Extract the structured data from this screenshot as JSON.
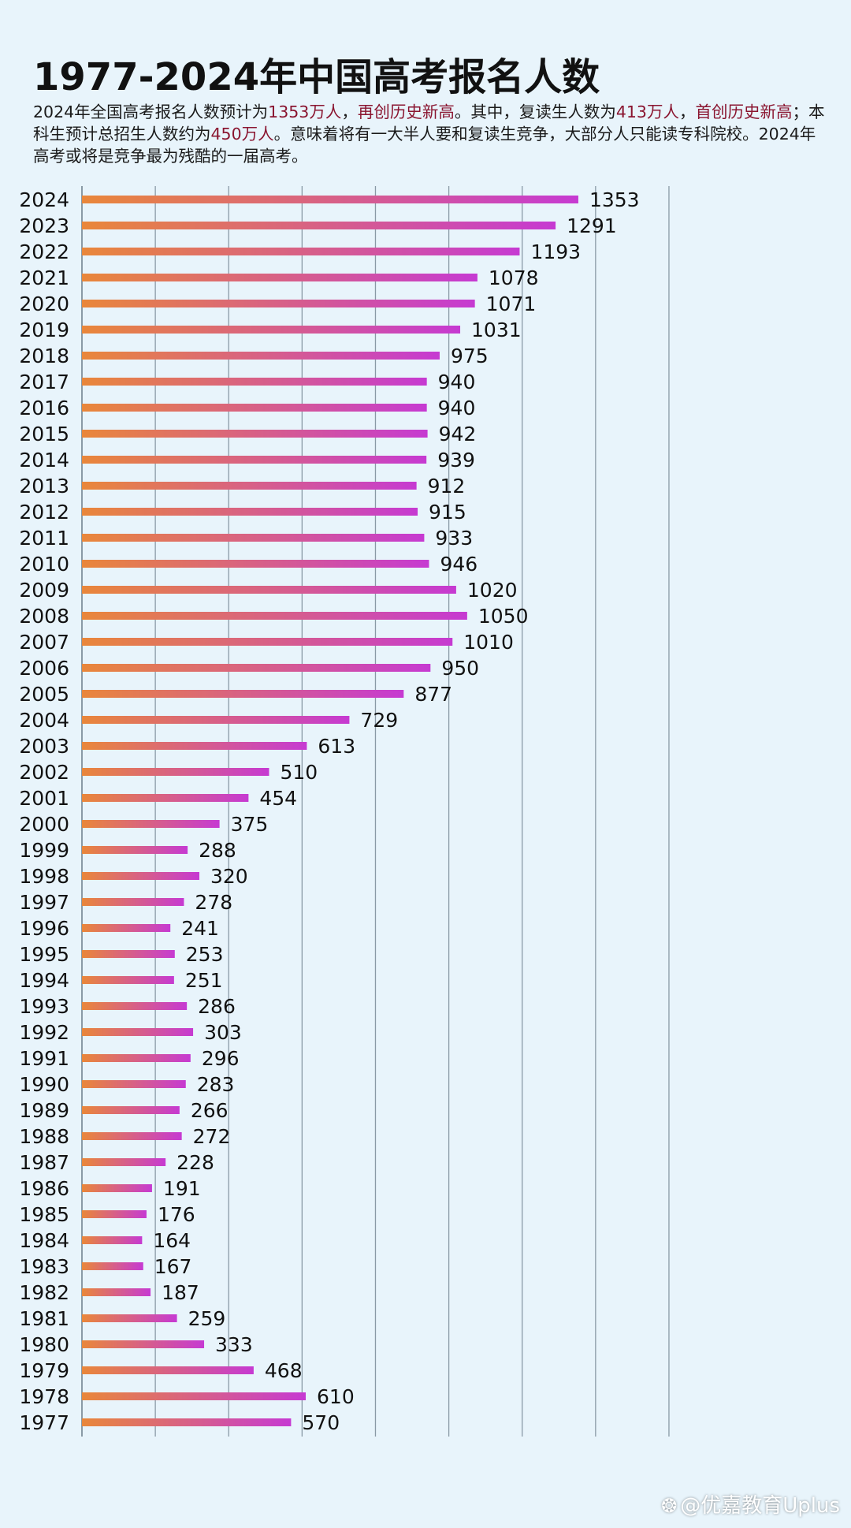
{
  "header": {
    "title": "1977-2024年中国高考报名人数",
    "desc_parts": [
      {
        "text": "2024年全国高考报名人数预计为",
        "hl": false
      },
      {
        "text": "1353万人",
        "hl": true
      },
      {
        "text": "，",
        "hl": false
      },
      {
        "text": "再创历史新高",
        "hl": true
      },
      {
        "text": "。其中，复读生人数为",
        "hl": false
      },
      {
        "text": "413万人",
        "hl": true
      },
      {
        "text": "，",
        "hl": false
      },
      {
        "text": "首创历史新高",
        "hl": true
      },
      {
        "text": "；本科生预计总招生人数约为",
        "hl": false
      },
      {
        "text": "450万人",
        "hl": true
      },
      {
        "text": "。意味着将有一大半人要和复读生竞争，大部分人只能读专科院校。2024年高考或将是竞争最为残酷的一届高考。",
        "hl": false
      }
    ]
  },
  "watermark": "@优嘉教育Uplus",
  "colors": {
    "background": "#e8f4fb",
    "bar_start": "#e9873a",
    "bar_end": "#c63ad2",
    "grid": "#8a9aa6",
    "highlight_text": "#8a1530"
  },
  "chart_data": {
    "type": "bar",
    "orientation": "horizontal",
    "title": "1977-2024年中国高考报名人数",
    "xlim": [
      0,
      1400
    ],
    "grid": true,
    "categories": [
      "2024",
      "2023",
      "2022",
      "2021",
      "2020",
      "2019",
      "2018",
      "2017",
      "2016",
      "2015",
      "2014",
      "2013",
      "2012",
      "2011",
      "2010",
      "2009",
      "2008",
      "2007",
      "2006",
      "2005",
      "2004",
      "2003",
      "2002",
      "2001",
      "2000",
      "1999",
      "1998",
      "1997",
      "1996",
      "1995",
      "1994",
      "1993",
      "1992",
      "1991",
      "1990",
      "1989",
      "1988",
      "1987",
      "1986",
      "1985",
      "1984",
      "1983",
      "1982",
      "1981",
      "1980",
      "1979",
      "1978",
      "1977"
    ],
    "values": [
      1353,
      1291,
      1193,
      1078,
      1071,
      1031,
      975,
      940,
      940,
      942,
      939,
      912,
      915,
      933,
      946,
      1020,
      1050,
      1010,
      950,
      877,
      729,
      613,
      510,
      454,
      375,
      288,
      320,
      278,
      241,
      253,
      251,
      286,
      303,
      296,
      283,
      266,
      272,
      228,
      191,
      176,
      164,
      167,
      187,
      259,
      333,
      468,
      610,
      570
    ]
  }
}
